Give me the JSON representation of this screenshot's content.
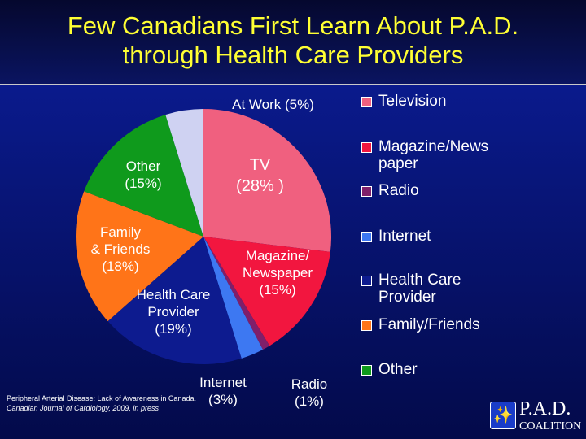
{
  "header": {
    "title": "Few Canadians First Learn About P.A.D.\nthrough Health Care Providers"
  },
  "chart_data": {
    "type": "pie",
    "categories": [
      "Television",
      "Magazine/Newspaper",
      "Radio",
      "Internet",
      "Health Care Provider",
      "Family/Friends",
      "Other",
      "At Work"
    ],
    "values": [
      28,
      15,
      1,
      3,
      19,
      18,
      15,
      5
    ],
    "slice_labels": [
      "TV\n(28% )",
      "Magazine/\nNewspaper\n(15%)",
      "Radio\n(1%)",
      "Internet\n(3%)",
      "Health Care\nProvider\n(19%)",
      "Family\n& Friends\n(18%)",
      "Other\n(15%)",
      "At Work (5%)"
    ],
    "colors": [
      "#f0607f",
      "#f2163f",
      "#7f1f6a",
      "#3d78f2",
      "#0d1b8f",
      "#ff7418",
      "#0f9a1c",
      "#cfd2f2"
    ],
    "legend": {
      "position": "right",
      "entries": [
        {
          "label": "Television",
          "color": "#f0607f"
        },
        {
          "label": "Magazine/News\npaper",
          "color": "#f2163f"
        },
        {
          "label": "Radio",
          "color": "#7f1f6a"
        },
        {
          "label": "Internet",
          "color": "#3d78f2"
        },
        {
          "label": "Health Care\nProvider",
          "color": "#0d1b8f"
        },
        {
          "label": "Family/Friends",
          "color": "#ff7418"
        },
        {
          "label": "Other",
          "color": "#0f9a1c"
        }
      ]
    }
  },
  "footer": {
    "citation_line1": "Peripheral Arterial Disease:  Lack of Awareness in Canada.",
    "citation_line2": "Canadian Journal of Cardiology, 2009, in press",
    "logo_name": "P.A.D.",
    "logo_org": "COALITION",
    "logo_icon": "walking-figure-icon"
  }
}
